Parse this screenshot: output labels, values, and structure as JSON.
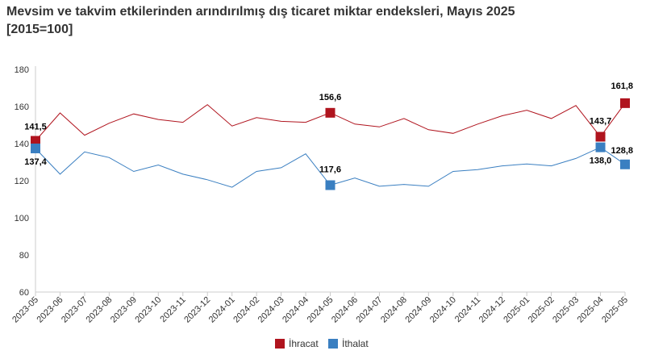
{
  "title": {
    "line1": "Mevsim ve takvim etkilerinden arındırılmış dış ticaret miktar endeksleri, Mayıs 2025",
    "line2": "[2015=100]"
  },
  "chart_data": {
    "type": "line",
    "title": "Mevsim ve takvim etkilerinden arındırılmış dış ticaret miktar endeksleri, Mayıs 2025 [2015=100]",
    "xlabel": "",
    "ylabel": "",
    "ylim": [
      60,
      180
    ],
    "yticks": [
      60,
      80,
      100,
      120,
      140,
      160,
      180
    ],
    "grid": false,
    "legend": "bottom-center",
    "x": [
      "2023-05",
      "2023-06",
      "2023-07",
      "2023-08",
      "2023-09",
      "2023-10",
      "2023-11",
      "2023-12",
      "2024-01",
      "2024-02",
      "2024-03",
      "2024-04",
      "2024-05",
      "2024-06",
      "2024-07",
      "2024-08",
      "2024-09",
      "2024-10",
      "2024-11",
      "2024-12",
      "2025-01",
      "2025-02",
      "2025-03",
      "2025-04",
      "2025-05"
    ],
    "series": [
      {
        "name": "İhracat",
        "color": "#b0141e",
        "values": [
          141.5,
          156.5,
          144.5,
          151,
          156,
          153,
          151.5,
          161,
          149.5,
          154,
          152,
          151.5,
          156.6,
          150.5,
          149,
          153.5,
          147.5,
          145.5,
          150.5,
          155,
          158,
          153.5,
          160.5,
          143.7,
          161.8
        ],
        "labeled_points": [
          {
            "index": 0,
            "label": "141,5"
          },
          {
            "index": 12,
            "label": "156,6"
          },
          {
            "index": 23,
            "label": "143,7"
          },
          {
            "index": 24,
            "label": "161,8"
          }
        ]
      },
      {
        "name": "İthalat",
        "color": "#3a7fc1",
        "values": [
          137.4,
          123.5,
          135.5,
          132.5,
          125,
          128.5,
          123.5,
          120.5,
          116.5,
          125,
          127,
          134.5,
          117.6,
          121.5,
          117,
          118,
          117,
          125,
          126,
          128,
          129,
          128,
          132,
          138.0,
          128.8
        ],
        "labeled_points": [
          {
            "index": 0,
            "label": "137,4"
          },
          {
            "index": 12,
            "label": "117,6"
          },
          {
            "index": 23,
            "label": "138,0"
          },
          {
            "index": 24,
            "label": "128,8"
          }
        ]
      }
    ]
  }
}
